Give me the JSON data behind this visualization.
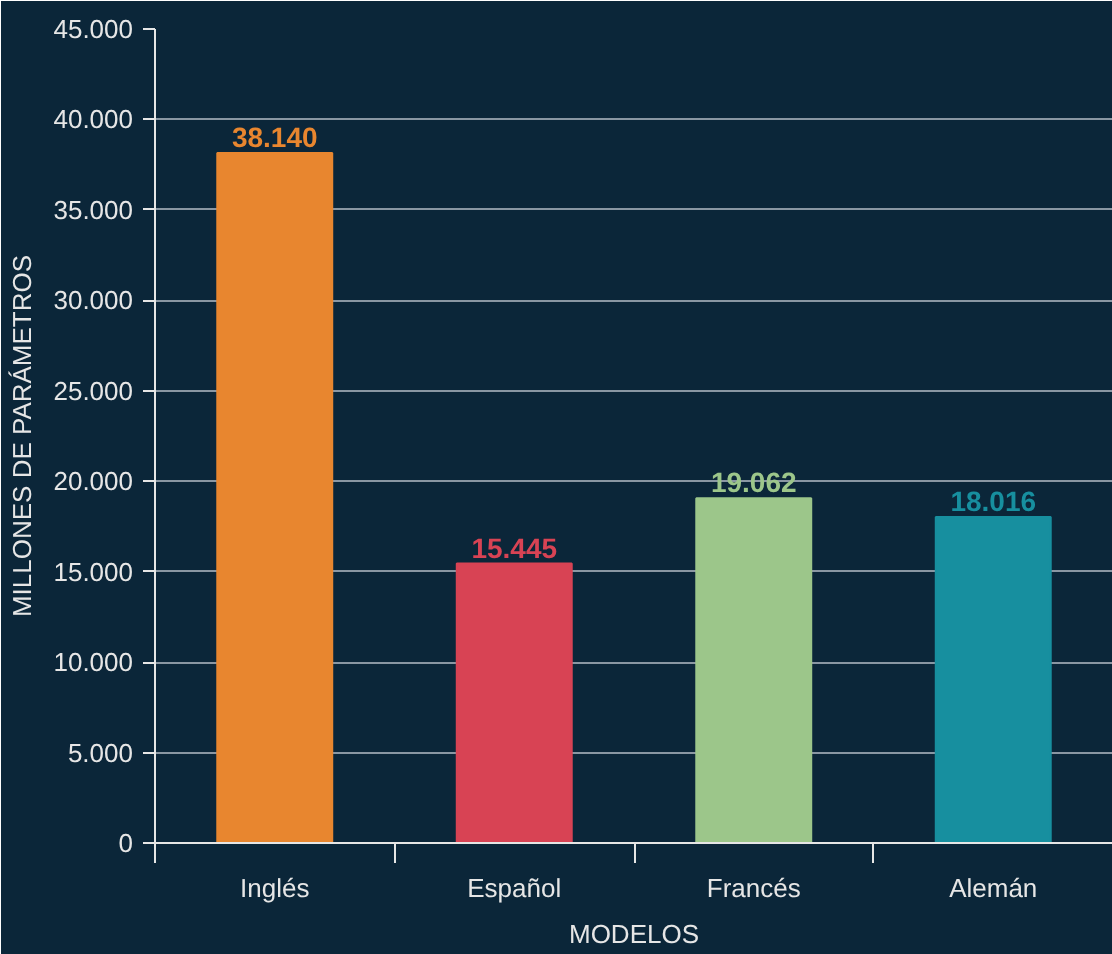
{
  "chart_data": {
    "type": "bar",
    "xlabel": "MODELOS",
    "ylabel": "MILLONES DE PARÁMETROS",
    "categories": [
      "Inglés",
      "Español",
      "Francés",
      "Alemán"
    ],
    "values": [
      38140,
      15445,
      19062,
      18016
    ],
    "colors": [
      "#e8862f",
      "#d84354",
      "#9cc68a",
      "#178f9f"
    ],
    "value_labels": [
      "38.140",
      "15.445",
      "19.062",
      "18.016"
    ],
    "grid": "y",
    "ylim": [
      0,
      45000
    ],
    "yticks": [
      0,
      {
        "value": 5000,
        "label": "5.000"
      },
      {
        "value": 10000,
        "label": "10.000"
      },
      {
        "value": 15000,
        "label": "15.000"
      },
      {
        "value": 20000,
        "label": "20.000"
      },
      {
        "value": 25000,
        "label": "25.000"
      },
      {
        "value": 30000,
        "label": "30.000"
      },
      {
        "value": 35000,
        "label": "35.000"
      },
      {
        "value": 40000,
        "label": "40.000"
      },
      {
        "value": 45000,
        "label": "45.000"
      }
    ]
  }
}
